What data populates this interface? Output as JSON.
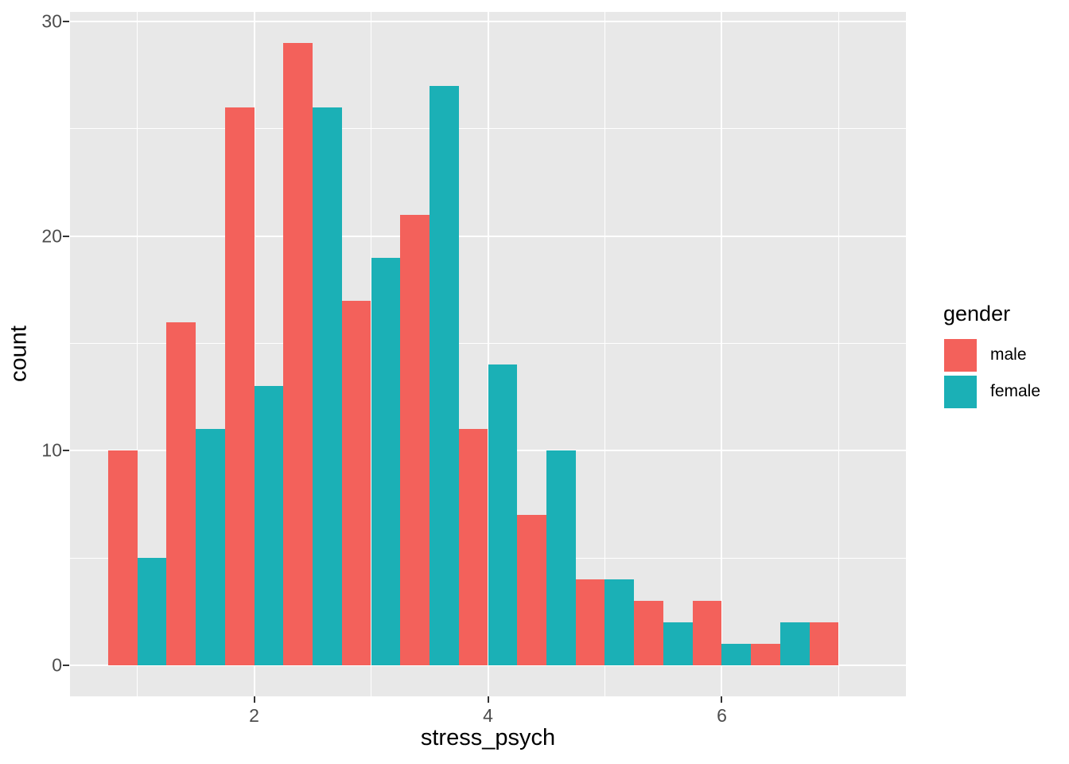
{
  "chart_data": {
    "type": "bar",
    "subtype": "dodged_histogram",
    "title": "",
    "xlabel": "stress_psych",
    "ylabel": "count",
    "bin_width": 0.5,
    "bin_centers": [
      1.0,
      1.5,
      2.0,
      2.5,
      3.0,
      3.5,
      4.0,
      4.5,
      5.0,
      5.5,
      6.0,
      6.5,
      7.0
    ],
    "series": [
      {
        "name": "male",
        "color": "#F3615B",
        "values": [
          10,
          16,
          26,
          29,
          17,
          21,
          11,
          7,
          4,
          3,
          3,
          1,
          2
        ]
      },
      {
        "name": "female",
        "color": "#1BB0B6",
        "values": [
          5,
          11,
          13,
          26,
          19,
          27,
          14,
          10,
          4,
          2,
          1,
          2,
          0
        ]
      }
    ],
    "xlim": [
      0.425,
      7.575
    ],
    "ylim": [
      -1.45,
      30.45
    ],
    "x_axis": {
      "major_ticks": [
        2,
        4,
        6
      ],
      "minor_gridlines": [
        1,
        3,
        5,
        7
      ]
    },
    "y_axis": {
      "major_ticks": [
        0,
        10,
        20,
        30
      ],
      "minor_gridlines": [
        5,
        15,
        25
      ]
    },
    "legend": {
      "title": "gender",
      "position": "right"
    },
    "grid": true,
    "colors": {
      "panel_bg": "#E8E8E8",
      "gridline": "#FFFFFF",
      "tick_label": "#4D4D4D",
      "axis_title": "#000000",
      "tick_mark": "#333333"
    }
  }
}
